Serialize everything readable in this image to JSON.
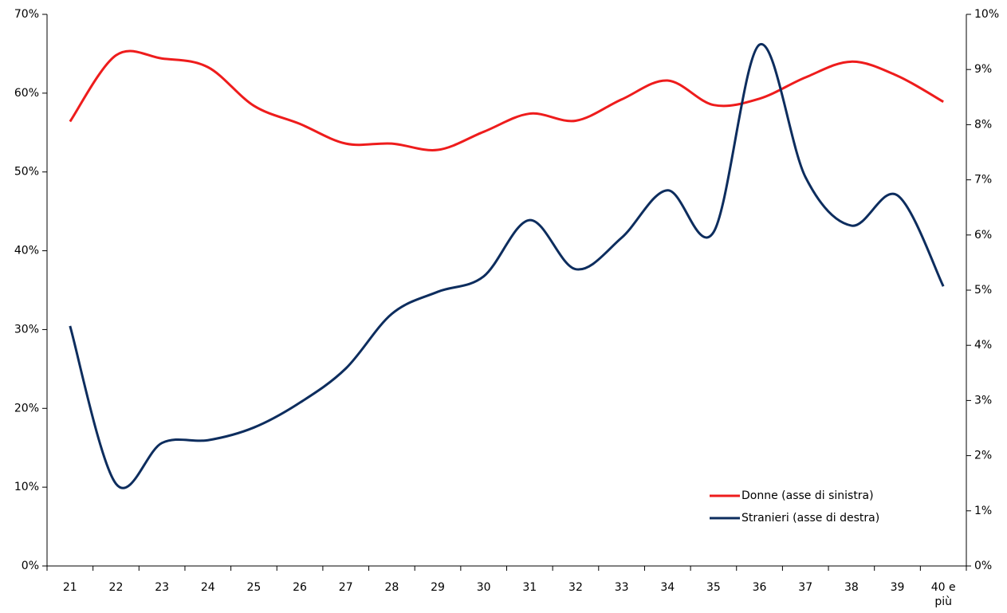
{
  "chart_data": {
    "type": "line",
    "categories": [
      "21",
      "22",
      "23",
      "24",
      "25",
      "26",
      "27",
      "28",
      "29",
      "30",
      "31",
      "32",
      "33",
      "34",
      "35",
      "36",
      "37",
      "38",
      "39",
      "40 e più"
    ],
    "series": [
      {
        "name": "Donne (asse di sinistra)",
        "color": "#ee1c1c",
        "axis": "y",
        "values": [
          56.4,
          64.8,
          64.4,
          63.3,
          58.4,
          56.1,
          53.6,
          53.6,
          52.8,
          55.1,
          57.4,
          56.5,
          59.2,
          61.6,
          58.5,
          59.3,
          62.0,
          64.0,
          62.2,
          58.9
        ]
      },
      {
        "name": "Stranieri (asse di destra)",
        "color": "#0d2d5e",
        "axis": "y2",
        "values": [
          4.35,
          1.49,
          2.23,
          2.28,
          2.51,
          2.96,
          3.58,
          4.57,
          4.97,
          5.25,
          6.27,
          5.38,
          5.95,
          6.81,
          6.05,
          9.45,
          7.05,
          6.17,
          6.72,
          5.07
        ]
      }
    ],
    "ylim": [
      0,
      70
    ],
    "yticks": [
      {
        "value": 0,
        "label": "0%"
      },
      {
        "value": 10,
        "label": "10%"
      },
      {
        "value": 20,
        "label": "20%"
      },
      {
        "value": 30,
        "label": "30%"
      },
      {
        "value": 40,
        "label": "40%"
      },
      {
        "value": 50,
        "label": "50%"
      },
      {
        "value": 60,
        "label": "60%"
      },
      {
        "value": 70,
        "label": "70%"
      }
    ],
    "y2lim": [
      0,
      10
    ],
    "y2ticks": [
      {
        "value": 0,
        "label": "0%"
      },
      {
        "value": 1,
        "label": "1%"
      },
      {
        "value": 2,
        "label": "2%"
      },
      {
        "value": 3,
        "label": "3%"
      },
      {
        "value": 4,
        "label": "4%"
      },
      {
        "value": 5,
        "label": "5%"
      },
      {
        "value": 6,
        "label": "6%"
      },
      {
        "value": 7,
        "label": "7%"
      },
      {
        "value": 8,
        "label": "8%"
      },
      {
        "value": 9,
        "label": "9%"
      },
      {
        "value": 10,
        "label": "10%"
      }
    ],
    "legend": "lower right",
    "grid": false
  }
}
